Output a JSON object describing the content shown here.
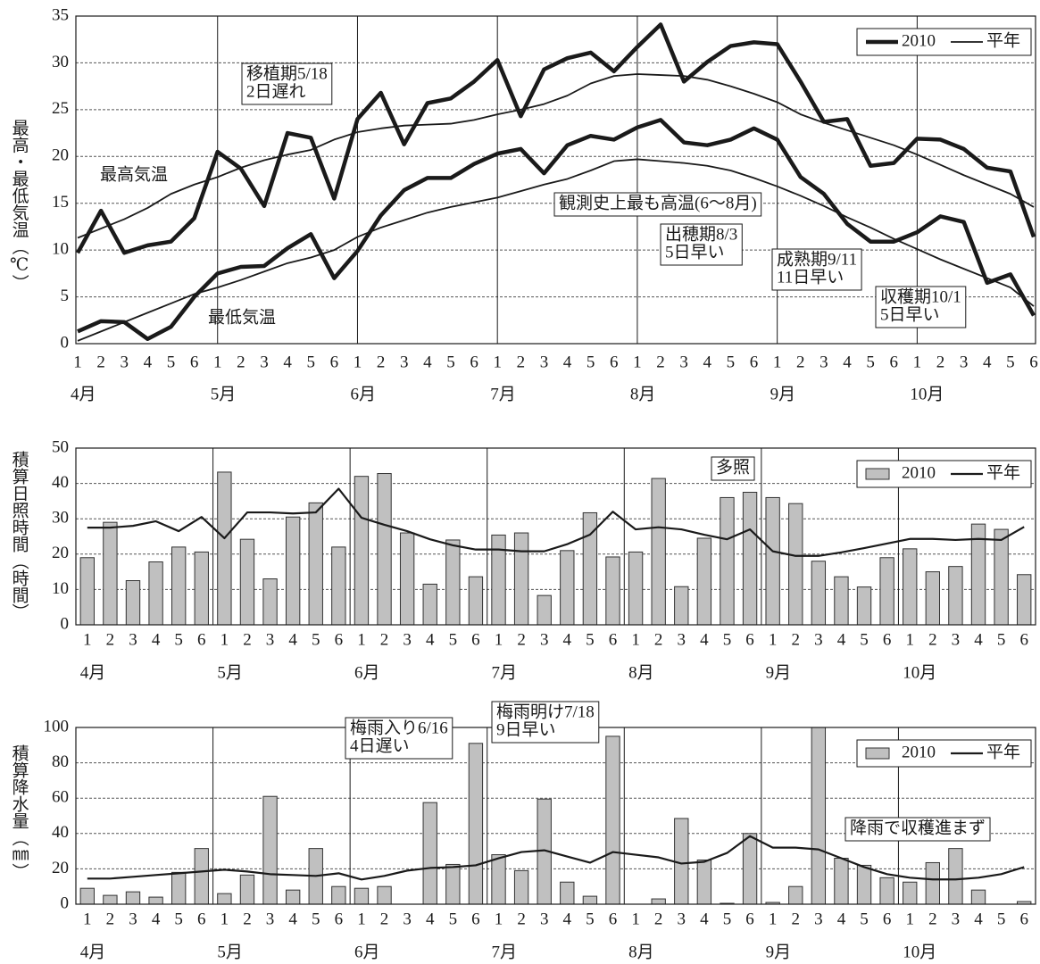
{
  "chart_data": [
    {
      "type": "line",
      "ylabel": "最高・最低気温（℃）",
      "categories": [
        "1",
        "2",
        "3",
        "4",
        "5",
        "6",
        "1",
        "2",
        "3",
        "4",
        "5",
        "6",
        "1",
        "2",
        "3",
        "4",
        "5",
        "6",
        "1",
        "2",
        "3",
        "4",
        "5",
        "6",
        "1",
        "2",
        "3",
        "4",
        "5",
        "6",
        "1",
        "2",
        "3",
        "4",
        "5",
        "6",
        "1",
        "2",
        "3",
        "4",
        "5",
        "6"
      ],
      "months": [
        "4月",
        "5月",
        "6月",
        "7月",
        "8月",
        "9月",
        "10月"
      ],
      "ylim": [
        0,
        35
      ],
      "yticks": [
        0,
        5,
        10,
        15,
        20,
        25,
        30,
        35
      ],
      "grid": true,
      "legend": "upper right",
      "series": [
        {
          "name": "2010",
          "color": "#1a1a1a",
          "width": 4.5,
          "high": [
            9.7,
            14.2,
            9.7,
            10.5,
            10.9,
            13.4,
            20.5,
            18.7,
            14.7,
            22.5,
            22.0,
            15.5,
            24.0,
            26.8,
            21.3,
            25.7,
            26.2,
            28.0,
            30.3,
            24.3,
            29.3,
            30.5,
            31.1,
            29.1,
            31.7,
            34.1,
            28.0,
            30.1,
            31.8,
            32.2,
            32.0,
            28.0,
            23.7,
            24.0,
            19.0,
            19.3,
            21.9,
            21.8,
            20.8,
            18.8,
            18.4,
            11.4
          ],
          "low": [
            1.3,
            2.4,
            2.3,
            0.5,
            1.8,
            5.0,
            7.5,
            8.2,
            8.3,
            10.2,
            11.7,
            7.0,
            9.9,
            13.7,
            16.4,
            17.7,
            17.7,
            19.2,
            20.3,
            20.8,
            18.2,
            21.2,
            22.2,
            21.8,
            23.1,
            23.9,
            21.5,
            21.2,
            21.8,
            23.0,
            21.8,
            17.8,
            16.0,
            12.8,
            10.9,
            10.9,
            11.9,
            13.6,
            13.0,
            6.5,
            7.4,
            3.0
          ]
        },
        {
          "name": "平年",
          "color": "#1a1a1a",
          "width": 1.8,
          "high": [
            11.3,
            12.3,
            13.3,
            14.5,
            16.0,
            17.0,
            17.8,
            18.8,
            19.6,
            20.2,
            20.7,
            21.8,
            22.6,
            23.0,
            23.3,
            23.4,
            23.5,
            23.9,
            24.5,
            25.0,
            25.6,
            26.5,
            27.8,
            28.6,
            28.8,
            28.7,
            28.6,
            28.2,
            27.5,
            26.7,
            25.8,
            24.5,
            23.6,
            22.8,
            22.0,
            21.2,
            20.2,
            19.1,
            18.0,
            17.0,
            16.0,
            14.6
          ],
          "low": [
            0.3,
            1.3,
            2.3,
            3.3,
            4.3,
            5.3,
            6.0,
            6.8,
            7.7,
            8.6,
            9.2,
            10.0,
            11.4,
            12.4,
            13.2,
            14.0,
            14.6,
            15.1,
            15.6,
            16.3,
            17.0,
            17.6,
            18.5,
            19.5,
            19.7,
            19.5,
            19.3,
            19.0,
            18.5,
            17.7,
            16.8,
            15.8,
            14.7,
            13.5,
            12.4,
            11.2,
            10.1,
            9.0,
            8.0,
            7.0,
            6.0,
            4.0
          ]
        }
      ],
      "annotations": [
        {
          "text": [
            "移植期5/18",
            "2日遅れ"
          ],
          "boxed": true
        },
        {
          "text": [
            "最高気温"
          ],
          "boxed": false
        },
        {
          "text": [
            "最低気温"
          ],
          "boxed": false
        },
        {
          "text": [
            "観測史上最も高温(6～8月)"
          ],
          "boxed": true
        },
        {
          "text": [
            "出穂期8/3",
            "5日早い"
          ],
          "boxed": true
        },
        {
          "text": [
            "成熟期9/11",
            "11日早い"
          ],
          "boxed": true
        },
        {
          "text": [
            "収穫期10/1",
            "5日早い"
          ],
          "boxed": true
        }
      ]
    },
    {
      "type": "bar",
      "ylabel": "積算日照時間（時間）",
      "categories": [
        "1",
        "2",
        "3",
        "4",
        "5",
        "6",
        "1",
        "2",
        "3",
        "4",
        "5",
        "6",
        "1",
        "2",
        "3",
        "4",
        "5",
        "6",
        "1",
        "2",
        "3",
        "4",
        "5",
        "6",
        "1",
        "2",
        "3",
        "4",
        "5",
        "6",
        "1",
        "2",
        "3",
        "4",
        "5",
        "6",
        "1",
        "2",
        "3",
        "4",
        "5",
        "6"
      ],
      "months": [
        "4月",
        "5月",
        "6月",
        "7月",
        "8月",
        "9月",
        "10月"
      ],
      "ylim": [
        0,
        50
      ],
      "yticks": [
        0,
        10,
        20,
        30,
        40,
        50
      ],
      "grid": true,
      "legend": "upper right",
      "series": [
        {
          "name": "2010",
          "type": "bar",
          "color": "#c0c0c0",
          "values": [
            19,
            29,
            12.5,
            17.8,
            22,
            20.6,
            43.2,
            24.2,
            13,
            30.5,
            34.5,
            22,
            42,
            42.8,
            26,
            11.5,
            24,
            13.6,
            25.4,
            26,
            8.3,
            21,
            31.7,
            19.2,
            20.6,
            41.4,
            10.8,
            24.5,
            36,
            37.5,
            36,
            34.3,
            18,
            13.6,
            10.7,
            19,
            21.5,
            15,
            16.5,
            28.5,
            27,
            14.2
          ]
        },
        {
          "name": "平年",
          "type": "line",
          "color": "#1a1a1a",
          "values": [
            27.5,
            27.5,
            28,
            29.3,
            26.5,
            30.5,
            24.5,
            31.8,
            31.8,
            31.5,
            31.8,
            38.5,
            30.3,
            28.3,
            26.5,
            24.2,
            22.5,
            21.3,
            21.3,
            20.8,
            20.8,
            22.8,
            25.5,
            32,
            27,
            27.6,
            27,
            25.5,
            24.2,
            27,
            20.8,
            19.5,
            19.5,
            20.5,
            21.7,
            23,
            24.3,
            24.3,
            24,
            24.3,
            24,
            27.7
          ]
        }
      ],
      "annotations": [
        {
          "text": [
            "多照"
          ],
          "boxed": true
        }
      ]
    },
    {
      "type": "bar",
      "ylabel": "積算降水量（㎜）",
      "categories": [
        "1",
        "2",
        "3",
        "4",
        "5",
        "6",
        "1",
        "2",
        "3",
        "4",
        "5",
        "6",
        "1",
        "2",
        "3",
        "4",
        "5",
        "6",
        "1",
        "2",
        "3",
        "4",
        "5",
        "6",
        "1",
        "2",
        "3",
        "4",
        "5",
        "6",
        "1",
        "2",
        "3",
        "4",
        "5",
        "6",
        "1",
        "2",
        "3",
        "4",
        "5",
        "6"
      ],
      "months": [
        "4月",
        "5月",
        "6月",
        "7月",
        "8月",
        "9月",
        "10月"
      ],
      "ylim": [
        0,
        100
      ],
      "yticks": [
        0,
        20,
        40,
        60,
        80,
        100
      ],
      "grid": true,
      "legend": "upper right",
      "series": [
        {
          "name": "2010",
          "type": "bar",
          "color": "#c0c0c0",
          "values": [
            9,
            5,
            7,
            4,
            18,
            31.5,
            6,
            16.5,
            61,
            8,
            31.5,
            10,
            9,
            10,
            0,
            57.5,
            22.5,
            91,
            28,
            19,
            59.5,
            12.5,
            4.5,
            95,
            0,
            3,
            48.5,
            25,
            0.5,
            40,
            1,
            10,
            100,
            26,
            22,
            15,
            12.5,
            23.5,
            31.5,
            8,
            0,
            1.5
          ]
        },
        {
          "name": "平年",
          "type": "line",
          "color": "#1a1a1a",
          "values": [
            14.5,
            14.5,
            15.5,
            16.5,
            17.5,
            18.5,
            19.5,
            18.5,
            17,
            16.5,
            16,
            17.5,
            14,
            16,
            19,
            20.5,
            21,
            22,
            26,
            29.5,
            30.5,
            27,
            23.5,
            29.5,
            28,
            26.5,
            23,
            24,
            29,
            38.5,
            32,
            32,
            31,
            26,
            21,
            17,
            15,
            14,
            14,
            15,
            17,
            21
          ]
        }
      ],
      "annotations": [
        {
          "text": [
            "梅雨入り6/16",
            "4日遅い"
          ],
          "boxed": true
        },
        {
          "text": [
            "梅雨明け7/18",
            "9日早い"
          ],
          "boxed": true
        },
        {
          "text": [
            "降雨で収穫進まず"
          ],
          "boxed": true
        }
      ]
    }
  ]
}
